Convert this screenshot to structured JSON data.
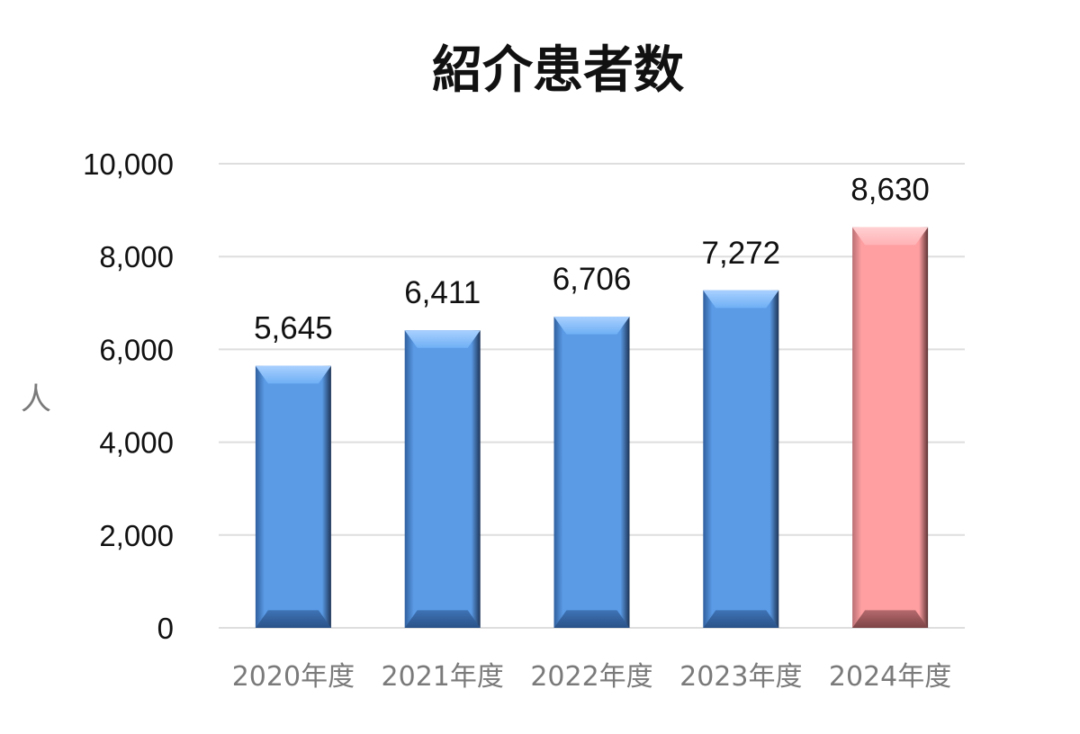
{
  "chart_data": {
    "type": "bar",
    "title": "紹介患者数",
    "ylabel": "人",
    "xlabel": "",
    "categories": [
      "2020年度",
      "2021年度",
      "2022年度",
      "2023年度",
      "2024年度"
    ],
    "values": [
      5645,
      6411,
      6706,
      7272,
      8630
    ],
    "value_labels": [
      "5,645",
      "6,411",
      "6,706",
      "7,272",
      "8,630"
    ],
    "ylim": [
      0,
      10000
    ],
    "yticks": [
      0,
      2000,
      4000,
      6000,
      8000,
      10000
    ],
    "ytick_labels": [
      "0",
      "2,000",
      "4,000",
      "6,000",
      "8,000",
      "10,000"
    ],
    "grid": true,
    "legend": "none",
    "colors": {
      "default_bar": "#5b9be6",
      "highlight_bar": "#ff9fa2",
      "highlight_index": 4
    }
  }
}
